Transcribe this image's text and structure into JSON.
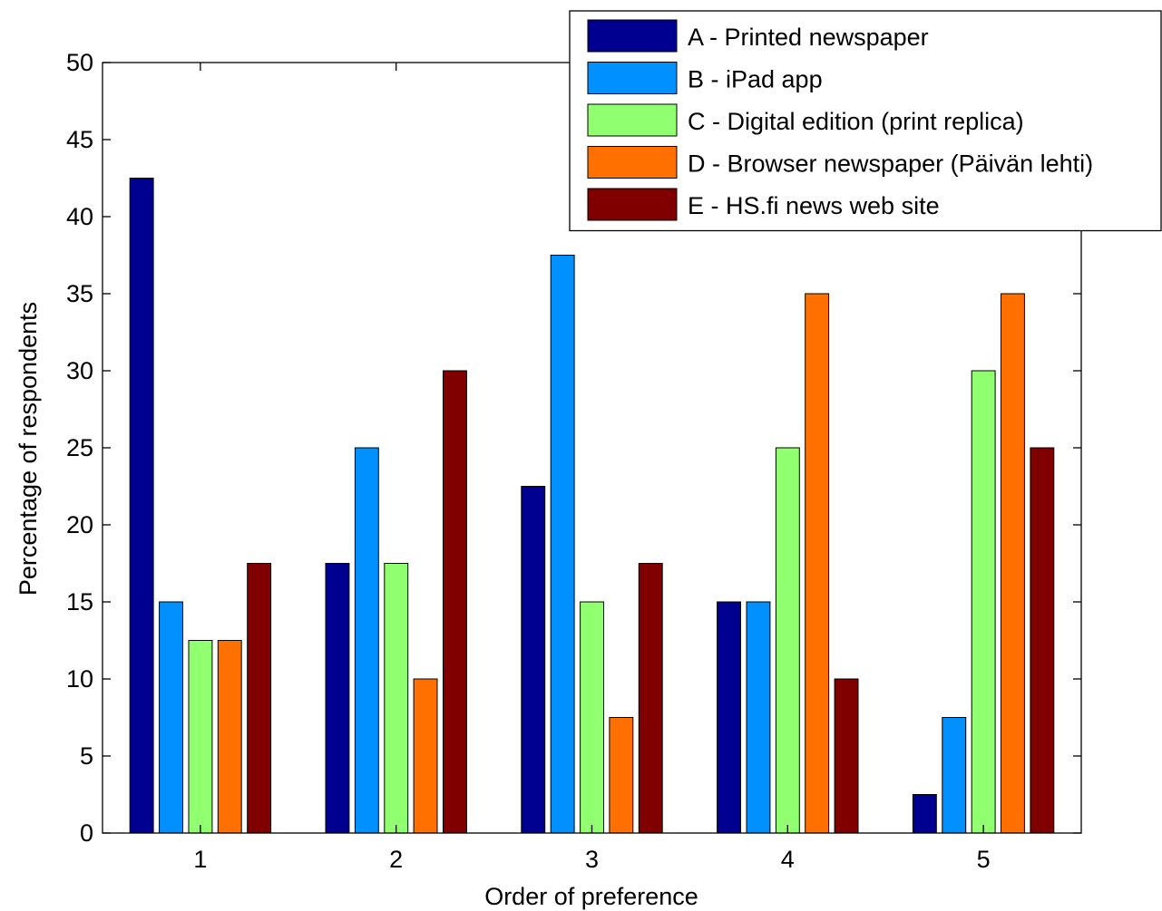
{
  "chart_data": {
    "type": "bar",
    "xlabel": "Order of preference",
    "ylabel": "Percentage of respondents",
    "categories": [
      "1",
      "2",
      "3",
      "4",
      "5"
    ],
    "ylim": [
      0,
      50
    ],
    "yticks": [
      0,
      5,
      10,
      15,
      20,
      25,
      30,
      35,
      40,
      45,
      50
    ],
    "grid": false,
    "legend_position": "top-right",
    "series": [
      {
        "name": "A - Printed newspaper",
        "color": "#000090",
        "values": [
          42.5,
          17.5,
          22.5,
          15,
          2.5
        ]
      },
      {
        "name": "B - iPad app",
        "color": "#0090ff",
        "values": [
          15,
          25,
          37.5,
          15,
          7.5
        ]
      },
      {
        "name": "C - Digital edition (print replica)",
        "color": "#90ff70",
        "values": [
          12.5,
          17.5,
          15,
          25,
          30
        ]
      },
      {
        "name": "D - Browser newspaper (Päivän lehti)",
        "color": "#ff7000",
        "values": [
          12.5,
          10,
          7.5,
          35,
          35
        ]
      },
      {
        "name": "E - HS.fi news web site",
        "color": "#800000",
        "values": [
          17.5,
          30,
          17.5,
          10,
          25
        ]
      }
    ]
  }
}
